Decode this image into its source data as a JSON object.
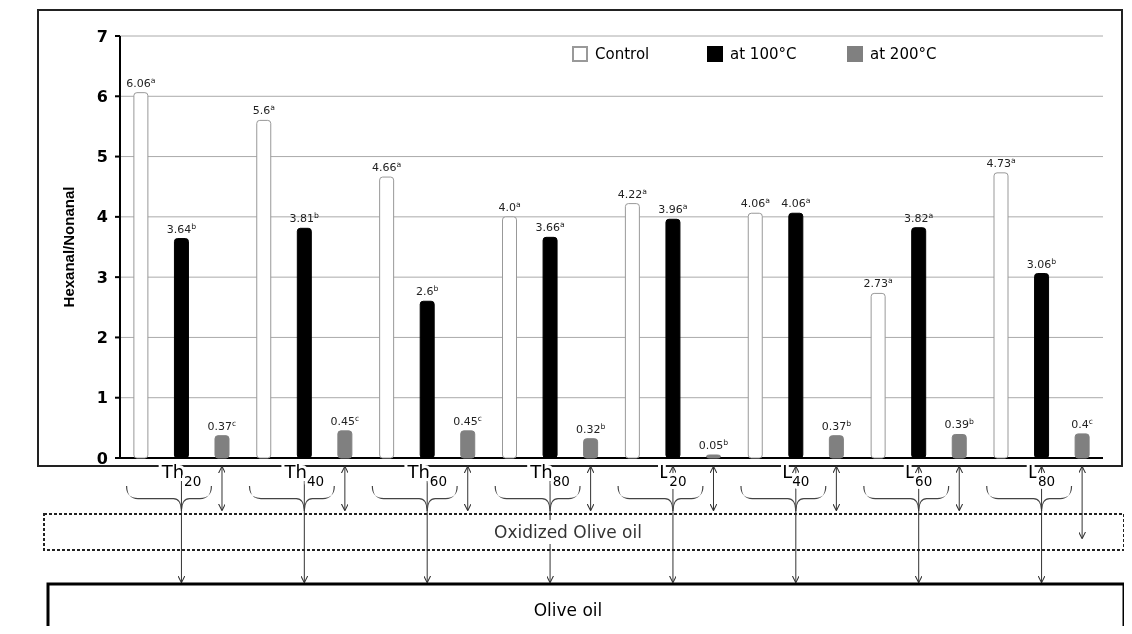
{
  "chart_data": {
    "type": "bar",
    "ylabel": "Hexanal/Nonanal",
    "categories": [
      "Th$_{20}$",
      "Th$_{40}$",
      "Th$_{60}$",
      "Th$_{80}$",
      "L$_{20}$",
      "L$_{40}$",
      "L$_{60}$",
      "L$_{80}$"
    ],
    "series": [
      {
        "name": "Control",
        "color": "#ffffff",
        "values": [
          6.06,
          5.6,
          4.66,
          4.0,
          4.22,
          4.06,
          2.73,
          4.73
        ],
        "value_labels": [
          "6.06$^{a}$",
          "5.6$^{a}$",
          "4.66$^{a}$",
          "4.0$^{a}$",
          "4.22$^{a}$",
          "4.06$^{a}$",
          "2.73$^{a}$",
          "4.73$^{a}$"
        ]
      },
      {
        "name": "at 100°C",
        "color": "#000000",
        "values": [
          3.64,
          3.81,
          2.6,
          3.66,
          3.96,
          4.06,
          3.82,
          3.06
        ],
        "value_labels": [
          "3.64$^{b}$",
          "3.81$^{b}$",
          "2.6$^{b}$",
          "3.66$^{a}$",
          "3.96$^{a}$",
          "4.06$^{a}$",
          "3.82$^{a}$",
          "3.06$^{b}$"
        ]
      },
      {
        "name": "at 200°C",
        "color": "#808080",
        "values": [
          0.37,
          0.45,
          0.45,
          0.32,
          0.05,
          0.37,
          0.39,
          0.4
        ],
        "value_labels": [
          "0.37$^{c}$",
          "0.45$^{c}$",
          "0.45$^{c}$",
          "0.32$^{b}$",
          "0.05$^{b}$",
          "0.37$^{b}$",
          "0.39$^{b}$",
          "0.4$^{c}$"
        ]
      }
    ],
    "ylim": [
      0,
      7
    ],
    "yticks": [
      0,
      1,
      2,
      3,
      4,
      5,
      6,
      7
    ],
    "grid": "y",
    "legend": "top right",
    "annotations": [
      "Oxidized Olive oil",
      "Olive oil"
    ]
  }
}
